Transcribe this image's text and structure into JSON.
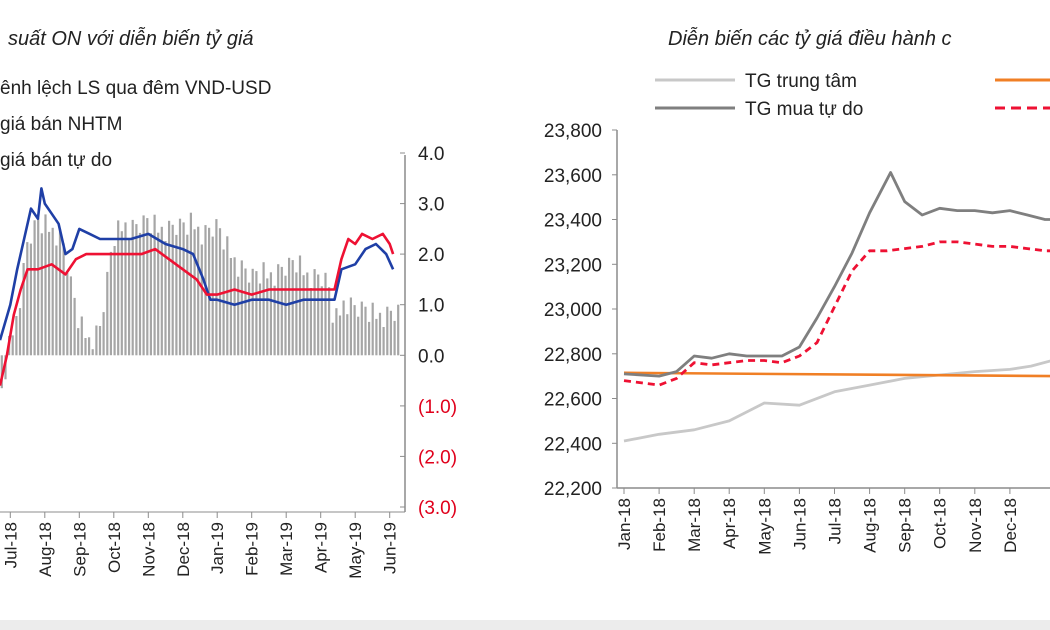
{
  "chart_data": [
    {
      "type": "bar+line",
      "title": "suất ON với diễn biến tỷ giá",
      "legend": [
        {
          "label": "ênh lệch LS qua đêm VND-USD",
          "color": "#a6a6a6",
          "kind": "bar"
        },
        {
          "label": "giá bán NHTM",
          "color": "#1f3fa6",
          "kind": "line"
        },
        {
          "label": "giá bán tự do",
          "color": "#ee1133",
          "kind": "line"
        }
      ],
      "right_axis": {
        "ylim": [
          -3.0,
          4.0
        ],
        "ticks": [
          {
            "label": "4.0",
            "value": 4.0,
            "negative": false
          },
          {
            "label": "3.0",
            "value": 3.0,
            "negative": false
          },
          {
            "label": "2.0",
            "value": 2.0,
            "negative": false
          },
          {
            "label": "1.0",
            "value": 1.0,
            "negative": false
          },
          {
            "label": "0.0",
            "value": 0.0,
            "negative": false
          },
          {
            "label": "(1.0)",
            "value": -1.0,
            "negative": true
          },
          {
            "label": "(2.0)",
            "value": -2.0,
            "negative": true
          },
          {
            "label": "(3.0)",
            "value": -3.0,
            "negative": true
          }
        ]
      },
      "x_ticks": [
        "Jul-18",
        "Aug-18",
        "Sep-18",
        "Oct-18",
        "Nov-18",
        "Dec-18",
        "Jan-19",
        "Feb-19",
        "Mar-19",
        "Apr-19",
        "May-19",
        "Jun-19"
      ],
      "x_range_months": [
        -0.3,
        11.3
      ],
      "bars": {
        "name": "ênh lệch LS qua đêm VND-USD",
        "knots": [
          [
            -0.3,
            -1.0
          ],
          [
            0.0,
            0.3
          ],
          [
            0.2,
            0.8
          ],
          [
            0.5,
            2.2
          ],
          [
            0.8,
            2.6
          ],
          [
            1.2,
            2.5
          ],
          [
            1.5,
            2.3
          ],
          [
            1.8,
            1.2
          ],
          [
            2.0,
            0.6
          ],
          [
            2.3,
            0.3
          ],
          [
            2.6,
            0.5
          ],
          [
            3.0,
            2.3
          ],
          [
            3.3,
            2.6
          ],
          [
            3.6,
            2.5
          ],
          [
            4.0,
            2.6
          ],
          [
            4.3,
            2.5
          ],
          [
            4.6,
            2.5
          ],
          [
            5.0,
            2.5
          ],
          [
            5.3,
            2.6
          ],
          [
            5.6,
            2.4
          ],
          [
            6.0,
            2.5
          ],
          [
            6.3,
            2.1
          ],
          [
            6.6,
            1.8
          ],
          [
            7.0,
            1.5
          ],
          [
            7.3,
            1.6
          ],
          [
            7.6,
            1.6
          ],
          [
            8.0,
            1.7
          ],
          [
            8.3,
            1.8
          ],
          [
            8.6,
            1.6
          ],
          [
            9.0,
            1.5
          ],
          [
            9.2,
            1.4
          ],
          [
            9.4,
            0.6
          ],
          [
            9.7,
            1.1
          ],
          [
            10.0,
            0.9
          ],
          [
            10.5,
            0.8
          ],
          [
            11.0,
            0.8
          ],
          [
            11.3,
            0.8
          ]
        ]
      },
      "series": [
        {
          "name": "giá bán NHTM",
          "color": "#1f3fa6",
          "points": [
            [
              -0.3,
              0.3
            ],
            [
              0.0,
              1.0
            ],
            [
              0.2,
              1.7
            ],
            [
              0.4,
              2.3
            ],
            [
              0.6,
              2.9
            ],
            [
              0.8,
              2.7
            ],
            [
              0.9,
              3.3
            ],
            [
              1.0,
              3.0
            ],
            [
              1.2,
              2.8
            ],
            [
              1.4,
              2.6
            ],
            [
              1.6,
              2.0
            ],
            [
              1.8,
              2.1
            ],
            [
              2.0,
              2.5
            ],
            [
              2.3,
              2.4
            ],
            [
              2.6,
              2.3
            ],
            [
              3.0,
              2.3
            ],
            [
              3.5,
              2.3
            ],
            [
              4.0,
              2.4
            ],
            [
              4.5,
              2.2
            ],
            [
              5.0,
              2.1
            ],
            [
              5.3,
              2.0
            ],
            [
              5.6,
              1.5
            ],
            [
              5.8,
              1.1
            ],
            [
              6.0,
              1.1
            ],
            [
              6.5,
              1.0
            ],
            [
              7.0,
              1.1
            ],
            [
              7.5,
              1.1
            ],
            [
              8.0,
              1.0
            ],
            [
              8.5,
              1.1
            ],
            [
              9.0,
              1.1
            ],
            [
              9.4,
              1.1
            ],
            [
              9.6,
              1.7
            ],
            [
              10.0,
              1.8
            ],
            [
              10.3,
              2.1
            ],
            [
              10.6,
              2.2
            ],
            [
              10.9,
              2.0
            ],
            [
              11.1,
              1.7
            ]
          ]
        },
        {
          "name": "giá bán tự do",
          "color": "#ee1133",
          "points": [
            [
              -0.3,
              -0.6
            ],
            [
              -0.1,
              0.0
            ],
            [
              0.1,
              0.8
            ],
            [
              0.3,
              1.3
            ],
            [
              0.5,
              1.7
            ],
            [
              0.8,
              1.7
            ],
            [
              1.2,
              1.8
            ],
            [
              1.6,
              1.6
            ],
            [
              1.9,
              1.9
            ],
            [
              2.2,
              2.0
            ],
            [
              2.6,
              2.0
            ],
            [
              3.0,
              2.0
            ],
            [
              3.4,
              2.0
            ],
            [
              3.8,
              2.0
            ],
            [
              4.2,
              2.1
            ],
            [
              4.6,
              1.9
            ],
            [
              5.0,
              1.7
            ],
            [
              5.4,
              1.5
            ],
            [
              5.7,
              1.2
            ],
            [
              6.0,
              1.2
            ],
            [
              6.5,
              1.3
            ],
            [
              7.0,
              1.2
            ],
            [
              7.5,
              1.3
            ],
            [
              8.0,
              1.3
            ],
            [
              8.5,
              1.3
            ],
            [
              9.0,
              1.3
            ],
            [
              9.4,
              1.3
            ],
            [
              9.6,
              1.9
            ],
            [
              9.8,
              2.3
            ],
            [
              10.0,
              2.2
            ],
            [
              10.2,
              2.4
            ],
            [
              10.5,
              2.3
            ],
            [
              10.8,
              2.4
            ],
            [
              11.0,
              2.2
            ],
            [
              11.1,
              2.0
            ]
          ]
        }
      ]
    },
    {
      "type": "line",
      "title": "Diễn biến các tỷ giá điều hành c",
      "legend": [
        {
          "label": "TG trung tâm",
          "color": "#c8c8c8",
          "style": "solid"
        },
        {
          "label": "",
          "color": "#f07f25",
          "style": "solid"
        },
        {
          "label": "TG mua tự do",
          "color": "#7f7f7f",
          "style": "solid"
        },
        {
          "label": "",
          "color": "#ee1133",
          "style": "dashed"
        }
      ],
      "ylim": [
        22200,
        23800
      ],
      "y_ticks": [
        "22,200",
        "22,400",
        "22,600",
        "22,800",
        "23,000",
        "23,200",
        "23,400",
        "23,600",
        "23,800"
      ],
      "y_tick_values": [
        22200,
        22400,
        22600,
        22800,
        23000,
        23200,
        23400,
        23600,
        23800
      ],
      "x_ticks": [
        "Jan-18",
        "Feb-18",
        "Mar-18",
        "Apr-18",
        "May-18",
        "Jun-18",
        "Jul-18",
        "Aug-18",
        "Sep-18",
        "Oct-18",
        "Nov-18",
        "Dec-18"
      ],
      "x_range_months": [
        0,
        12.2
      ],
      "series": [
        {
          "name": "TG trung tâm",
          "color": "#c8c8c8",
          "dashed": false,
          "points": [
            [
              0,
              22410
            ],
            [
              1,
              22440
            ],
            [
              2,
              22460
            ],
            [
              3,
              22500
            ],
            [
              4,
              22580
            ],
            [
              5,
              22570
            ],
            [
              6,
              22630
            ],
            [
              7,
              22660
            ],
            [
              8,
              22690
            ],
            [
              9,
              22705
            ],
            [
              10,
              22720
            ],
            [
              11,
              22730
            ],
            [
              11.6,
              22745
            ],
            [
              12.2,
              22770
            ]
          ]
        },
        {
          "name": "",
          "color": "#f07f25",
          "dashed": false,
          "points": [
            [
              0,
              22715
            ],
            [
              12.2,
              22700
            ]
          ]
        },
        {
          "name": "TG mua tự do",
          "color": "#7f7f7f",
          "dashed": false,
          "points": [
            [
              0,
              22710
            ],
            [
              1,
              22700
            ],
            [
              1.5,
              22720
            ],
            [
              2,
              22790
            ],
            [
              2.5,
              22780
            ],
            [
              3,
              22800
            ],
            [
              3.5,
              22790
            ],
            [
              4,
              22790
            ],
            [
              4.5,
              22790
            ],
            [
              5,
              22830
            ],
            [
              5.5,
              22960
            ],
            [
              6,
              23100
            ],
            [
              6.5,
              23250
            ],
            [
              7,
              23430
            ],
            [
              7.3,
              23520
            ],
            [
              7.6,
              23610
            ],
            [
              8,
              23480
            ],
            [
              8.5,
              23420
            ],
            [
              9,
              23450
            ],
            [
              9.5,
              23440
            ],
            [
              10,
              23440
            ],
            [
              10.5,
              23430
            ],
            [
              11,
              23440
            ],
            [
              11.5,
              23420
            ],
            [
              12,
              23400
            ],
            [
              12.2,
              23400
            ]
          ]
        },
        {
          "name": "",
          "color": "#ee1133",
          "dashed": true,
          "points": [
            [
              0,
              22680
            ],
            [
              1,
              22660
            ],
            [
              1.5,
              22690
            ],
            [
              2,
              22760
            ],
            [
              2.5,
              22750
            ],
            [
              3,
              22760
            ],
            [
              3.5,
              22770
            ],
            [
              4,
              22770
            ],
            [
              4.5,
              22760
            ],
            [
              5,
              22790
            ],
            [
              5.5,
              22850
            ],
            [
              6,
              23010
            ],
            [
              6.5,
              23170
            ],
            [
              7,
              23260
            ],
            [
              7.5,
              23260
            ],
            [
              8,
              23270
            ],
            [
              8.5,
              23280
            ],
            [
              9,
              23300
            ],
            [
              9.5,
              23300
            ],
            [
              10,
              23290
            ],
            [
              10.5,
              23280
            ],
            [
              11,
              23280
            ],
            [
              11.5,
              23270
            ],
            [
              12,
              23260
            ],
            [
              12.2,
              23260
            ]
          ]
        }
      ]
    }
  ]
}
